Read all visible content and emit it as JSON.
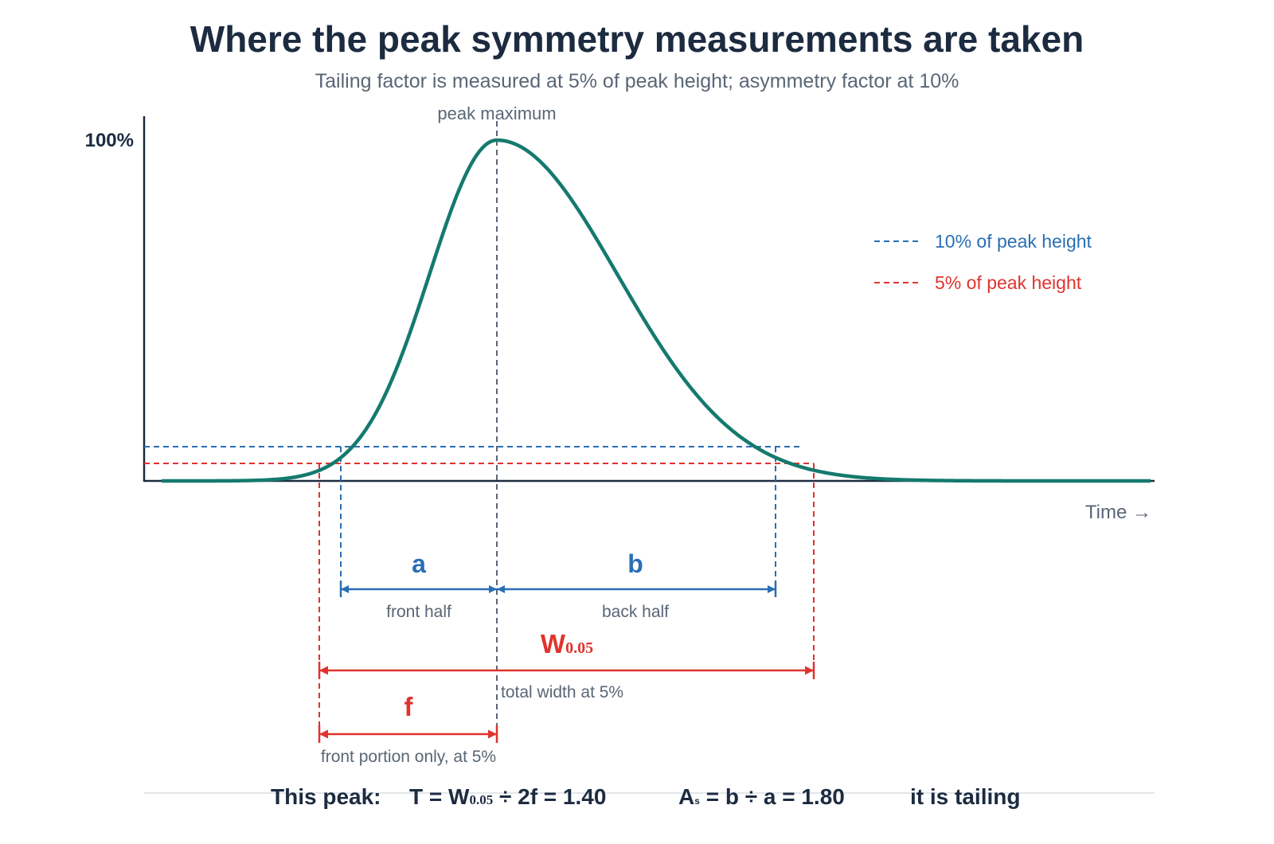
{
  "header": {
    "title": "Where the peak symmetry measurements are taken",
    "subtitle": "Tailing factor is measured at 5% of peak height; asymmetry factor at 10%"
  },
  "plot": {
    "y_top_label": "100%",
    "peak_label": "peak maximum",
    "x_axis_label": "Time →"
  },
  "legend": {
    "ten_percent": "10% of peak height",
    "five_percent": "5% of peak height"
  },
  "measures": {
    "a_letter": "a",
    "a_caption": "front half",
    "b_letter": "b",
    "b_caption": "back half",
    "w_letter": "W",
    "w_sub": "0.05",
    "w_caption": "total width at 5%",
    "f_letter": "f",
    "f_caption": "front portion only, at 5%"
  },
  "footer": {
    "lead": "This peak:",
    "t_lhs": "T = W",
    "t_sub": "0.05",
    "t_rhs": " ÷ 2f = 1.40",
    "as_lhs": "A",
    "as_sub": "s",
    "as_rhs": " = b ÷ a = 1.80",
    "verdict": "it is tailing"
  },
  "colors": {
    "peak": "#157a6e",
    "ten_percent": "#2a6fb5",
    "five_percent": "#e0332e",
    "axis": "#1c2b40",
    "text_gray": "#5a6676"
  }
}
